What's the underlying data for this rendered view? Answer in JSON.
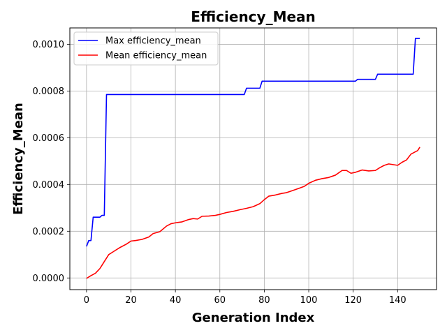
{
  "chart_data": {
    "type": "line",
    "title": "Efficiency_Mean",
    "xlabel": "Generation Index",
    "ylabel": "Efficiency_Mean",
    "xlim": [
      -7.5,
      157.5
    ],
    "ylim": [
      -5e-05,
      0.00107
    ],
    "xticks": [
      0,
      20,
      40,
      60,
      80,
      100,
      120,
      140
    ],
    "xtick_labels": [
      "0",
      "20",
      "40",
      "60",
      "80",
      "100",
      "120",
      "140"
    ],
    "yticks": [
      0,
      0.0002,
      0.0004,
      0.0006,
      0.0008,
      0.001
    ],
    "ytick_labels": [
      "0.0000",
      "0.0002",
      "0.0004",
      "0.0006",
      "0.0008",
      "0.0010"
    ],
    "grid": true,
    "legend_position": "top-left",
    "series": [
      {
        "name": "Max efficiency_mean",
        "color": "#0000ff",
        "x": [
          0,
          1,
          2,
          3,
          6,
          7,
          8,
          9,
          71,
          72,
          78,
          79,
          121,
          122,
          130,
          131,
          147,
          148,
          150
        ],
        "y": [
          0.000135,
          0.00016,
          0.00016,
          0.00026,
          0.00026,
          0.000268,
          0.000268,
          0.000785,
          0.000785,
          0.000812,
          0.000812,
          0.000842,
          0.000842,
          0.00085,
          0.00085,
          0.000872,
          0.000872,
          0.001025,
          0.001025
        ]
      },
      {
        "name": "Mean efficiency_mean",
        "color": "#ff0000",
        "x": [
          0,
          2,
          4,
          6,
          8,
          10,
          12,
          15,
          18,
          20,
          22,
          25,
          28,
          30,
          33,
          36,
          38,
          40,
          43,
          46,
          48,
          50,
          52,
          55,
          58,
          60,
          63,
          66,
          69,
          72,
          75,
          78,
          80,
          82,
          85,
          88,
          90,
          93,
          96,
          98,
          100,
          103,
          106,
          109,
          112,
          115,
          117,
          119,
          121,
          124,
          127,
          130,
          132,
          134,
          136,
          138,
          140,
          142,
          144,
          146,
          148,
          149,
          150
        ],
        "y": [
          -2e-06,
          1e-05,
          2e-05,
          4e-05,
          7e-05,
          0.0001,
          0.000112,
          0.00013,
          0.000145,
          0.000158,
          0.00016,
          0.000165,
          0.000175,
          0.00019,
          0.000198,
          0.000222,
          0.000232,
          0.000236,
          0.00024,
          0.00025,
          0.000254,
          0.000252,
          0.000264,
          0.000265,
          0.000268,
          0.000272,
          0.00028,
          0.000285,
          0.000292,
          0.000298,
          0.000305,
          0.000318,
          0.000335,
          0.00035,
          0.000355,
          0.000362,
          0.000365,
          0.000375,
          0.000385,
          0.000392,
          0.000405,
          0.000418,
          0.000425,
          0.00043,
          0.00044,
          0.00046,
          0.00046,
          0.000448,
          0.000452,
          0.000462,
          0.000458,
          0.00046,
          0.000472,
          0.000482,
          0.000488,
          0.000485,
          0.000482,
          0.000495,
          0.000505,
          0.00053,
          0.00054,
          0.000545,
          0.00056
        ]
      }
    ]
  }
}
